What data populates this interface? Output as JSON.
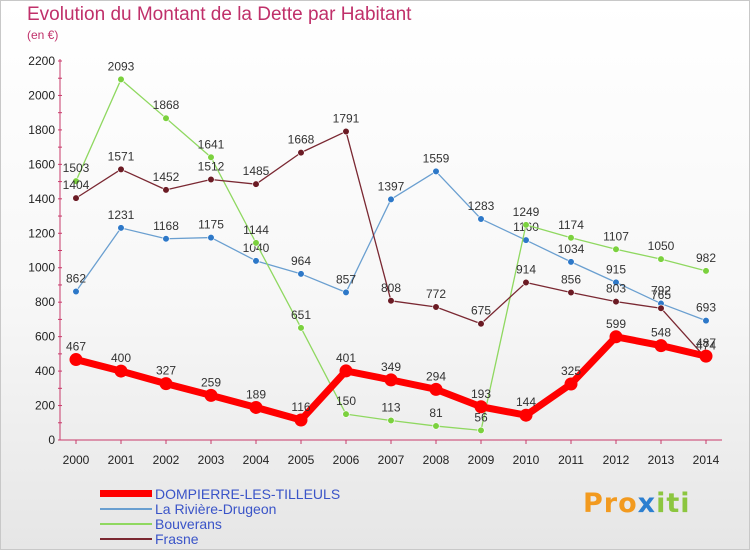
{
  "title": "Evolution du Montant de la Dette par Habitant",
  "subtitle": "(en €)",
  "logo": {
    "text_a": "Pro",
    "text_b": "x",
    "text_c": "iti"
  },
  "chart_data": {
    "type": "line",
    "x": [
      "2000",
      "2001",
      "2002",
      "2003",
      "2004",
      "2005",
      "2006",
      "2007",
      "2008",
      "2009",
      "2010",
      "2011",
      "2012",
      "2013",
      "2014"
    ],
    "ylim": [
      0,
      2200
    ],
    "yticks": [
      0,
      200,
      400,
      600,
      800,
      1000,
      1200,
      1400,
      1600,
      1800,
      2000,
      2200
    ],
    "grid": false,
    "legend_position": "bottom-left",
    "series": [
      {
        "name": "DOMPIERRE-LES-TILLEULS",
        "color": "#ff0000",
        "marker": "#ff0000",
        "width": 7,
        "values": [
          467,
          400,
          327,
          259,
          189,
          116,
          401,
          349,
          294,
          193,
          144,
          325,
          599,
          548,
          487
        ]
      },
      {
        "name": "La Rivière-Drugeon",
        "color": "#6a9fd0",
        "marker": "#2d78c8",
        "width": 1.3,
        "values": [
          862,
          1231,
          1168,
          1175,
          1040,
          964,
          857,
          1397,
          1559,
          1283,
          1160,
          1034,
          915,
          792,
          693
        ]
      },
      {
        "name": "Bouverans",
        "color": "#8fd860",
        "marker": "#7bd13e",
        "width": 1.3,
        "values": [
          1503,
          2093,
          1868,
          1641,
          1144,
          651,
          150,
          113,
          81,
          56,
          1249,
          1174,
          1107,
          1050,
          982
        ]
      },
      {
        "name": "Frasne",
        "color": "#7a2832",
        "marker": "#6b1b24",
        "width": 1.3,
        "values": [
          1404,
          1571,
          1452,
          1512,
          1485,
          1668,
          1791,
          808,
          772,
          675,
          914,
          856,
          803,
          765,
          474
        ]
      }
    ]
  }
}
